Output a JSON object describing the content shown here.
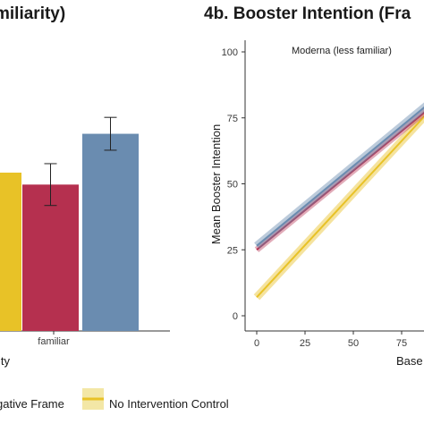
{
  "chart_data": [
    {
      "type": "bar",
      "title": "miliarity)",
      "xlabel": "ity",
      "category_label": "familiar",
      "series": [
        {
          "name": "…gative Frame",
          "value": 63,
          "error": null
        },
        {
          "name": "",
          "value": 59,
          "error": 7
        },
        {
          "name": "",
          "value": 76,
          "error": 5.5
        }
      ]
    },
    {
      "type": "line",
      "title": "4b. Booster Intention (Fra",
      "xlabel": "Base",
      "ylabel": "Mean Booster Intention",
      "annotation": "Moderna (less familiar)",
      "xlim": [
        0,
        100
      ],
      "ylim": [
        0,
        100
      ],
      "xticks": [
        0,
        25,
        50,
        75
      ],
      "yticks": [
        0,
        25,
        50,
        75,
        100
      ],
      "series": [
        {
          "name": "",
          "x": [
            0,
            100
          ],
          "y": [
            26.5,
            87
          ]
        },
        {
          "name": "",
          "x": [
            0,
            100
          ],
          "y": [
            25,
            85
          ]
        },
        {
          "name": "No Intervention Control",
          "x": [
            0,
            100
          ],
          "y": [
            7,
            86
          ]
        }
      ]
    }
  ],
  "legend": {
    "items": [
      {
        "label": "gative Frame",
        "color": "#b5304f"
      },
      {
        "label": "No Intervention Control",
        "color": "#e8c227"
      }
    ]
  },
  "colors": {
    "yellow": "#e8c227",
    "red": "#b5304f",
    "blue": "#6a8cb0"
  }
}
